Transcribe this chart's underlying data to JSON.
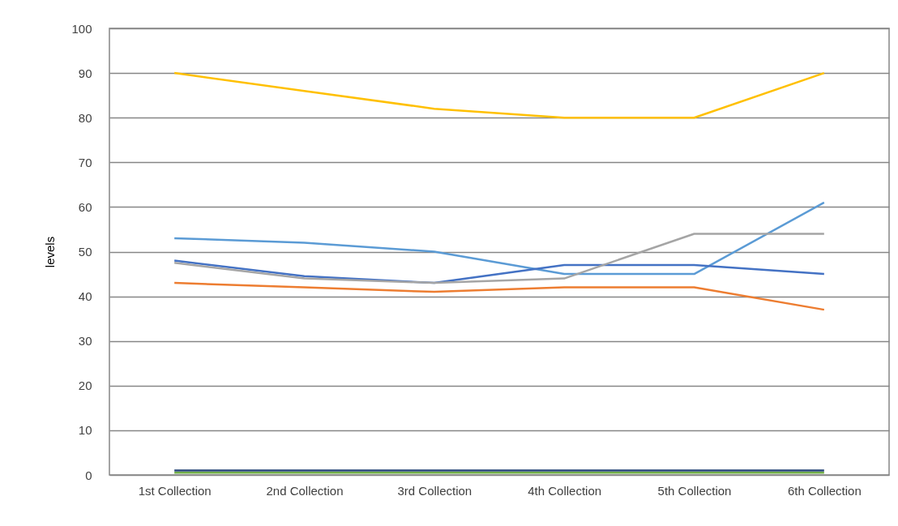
{
  "chart_data": {
    "type": "line",
    "ylabel": "levels",
    "categories": [
      "1st Collection",
      "2nd Collection",
      "3rd Collection",
      "4th Collection",
      "5th Collection",
      "6th Collection"
    ],
    "ylim": [
      0,
      100
    ],
    "yticks": [
      0,
      10,
      20,
      30,
      40,
      50,
      60,
      70,
      80,
      90,
      100
    ],
    "grid": "y",
    "legend": false,
    "marker": "none",
    "line_style": "solid",
    "series": [
      {
        "color": "#ffc000",
        "values": [
          90,
          86,
          82,
          80,
          80,
          90
        ]
      },
      {
        "color": "#5b9bd5",
        "values": [
          53,
          52,
          50,
          45,
          45,
          61
        ]
      },
      {
        "color": "#4472c4",
        "values": [
          48,
          44.5,
          43,
          47,
          47,
          45
        ]
      },
      {
        "color": "#a5a5a5",
        "values": [
          47.5,
          44,
          43,
          44,
          54,
          54
        ]
      },
      {
        "color": "#ed7d31",
        "values": [
          43,
          42,
          41,
          42,
          42,
          37
        ]
      },
      {
        "color": "#70ad47",
        "values": [
          0.5,
          0.5,
          0.5,
          0.5,
          0.5,
          0.5
        ]
      },
      {
        "color": "#264478",
        "values": [
          1,
          1,
          1,
          1,
          1,
          1
        ]
      }
    ]
  }
}
